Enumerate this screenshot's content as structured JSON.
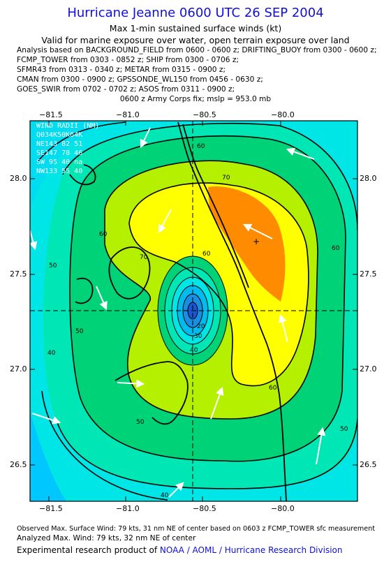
{
  "header": {
    "title": "Hurricane Jeanne 0600 UTC 26 SEP 2004",
    "subtitle_1": "Max 1-min sustained surface winds (kt)",
    "subtitle_2": "Valid for marine exposure over water, open terrain exposure over land",
    "sources": [
      "Analysis based on  BACKGROUND_FIELD from 0600 - 0600 z;  DRIFTING_BUOY from 0300 - 0600 z;",
      "FCMP_TOWER from 0303 - 0852 z;  SHIP from 0300 - 0706 z;",
      "SFMR43 from 0313 - 0340 z;  METAR from 0315 - 0900 z;",
      "CMAN from 0300 - 0900 z;  GPSSONDE_WL150 from 0456 - 0630 z;",
      "GOES_SWIR from 0702 - 0702 z;  ASOS from 0311 - 0900 z;"
    ],
    "fix_line": "0600 z Army Corps fix; mslp = 953.0 mb"
  },
  "axes": {
    "lon_ticks": [
      "−81.5",
      "−81.0",
      "−80.5",
      "−80.0"
    ],
    "lat_ticks": [
      "28.0",
      "27.5",
      "27.0",
      "26.5"
    ]
  },
  "wind_radii": {
    "header": "WIND RADII (NM)",
    "columns": "Q034K50K64K",
    "rows": [
      "NE143 82 51",
      "SE147 78 46",
      "SW 95 40 na",
      "NW133 55 40"
    ]
  },
  "contour_labels": [
    "60",
    "70",
    "60",
    "70",
    "60",
    "50",
    "60",
    "40",
    "50",
    "30",
    "20",
    "40",
    "60",
    "50",
    "50",
    "40"
  ],
  "colors": {
    "title_blue": "#1010d8",
    "wind_30_40": "#00e6e6",
    "wind_40_50": "#00e6b4",
    "wind_50_60": "#00d278",
    "wind_60_70": "#b4f000",
    "wind_70_75": "#ffff00",
    "wind_75_plus": "#ff8c00",
    "outer_low": "#00c8ff",
    "center_core": "#1a56d0"
  },
  "footer": {
    "observed": "Observed Max. Surface Wind: 79 kts, 31 nm NE of center based on 0603 z FCMP_TOWER sfc measurement",
    "analyzed": "Analyzed Max. Wind: 79 kts, 32 nm NE of center",
    "credit_prefix": "Experimental research product of ",
    "credit_org": "NOAA / AOML / Hurricane Research Division"
  }
}
